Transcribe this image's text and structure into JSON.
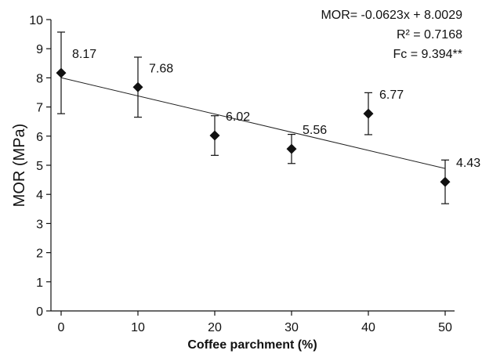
{
  "chart_data": {
    "type": "scatter",
    "title": "",
    "xlabel": "Coffee parchment (%)",
    "ylabel": "MOR (MPa)",
    "xlim": [
      0,
      50
    ],
    "ylim": [
      0,
      10
    ],
    "x_ticks": [
      "0",
      "10",
      "20",
      "30",
      "40",
      "50"
    ],
    "y_ticks": [
      "0",
      "1",
      "2",
      "3",
      "4",
      "5",
      "6",
      "7",
      "8",
      "9",
      "10"
    ],
    "grid": false,
    "legend": "none",
    "series": [
      {
        "x": [
          0,
          10,
          20,
          30,
          40,
          50
        ],
        "y": [
          8.17,
          7.68,
          6.02,
          5.56,
          6.77,
          4.43
        ],
        "error": [
          1.4,
          1.03,
          0.68,
          0.5,
          0.72,
          0.75
        ],
        "labels": [
          "8.17",
          "7.68",
          "6.02",
          "5.56",
          "6.77",
          "4.43"
        ],
        "marker": "diamond",
        "color": "#111111"
      }
    ],
    "trendline": {
      "slope": -0.0623,
      "intercept": 8.0029,
      "color": "#222222"
    },
    "annotations": [
      "MOR= -0.0623x + 8.0029",
      "R² = 0.7168",
      "Fc = 9.394**"
    ]
  }
}
